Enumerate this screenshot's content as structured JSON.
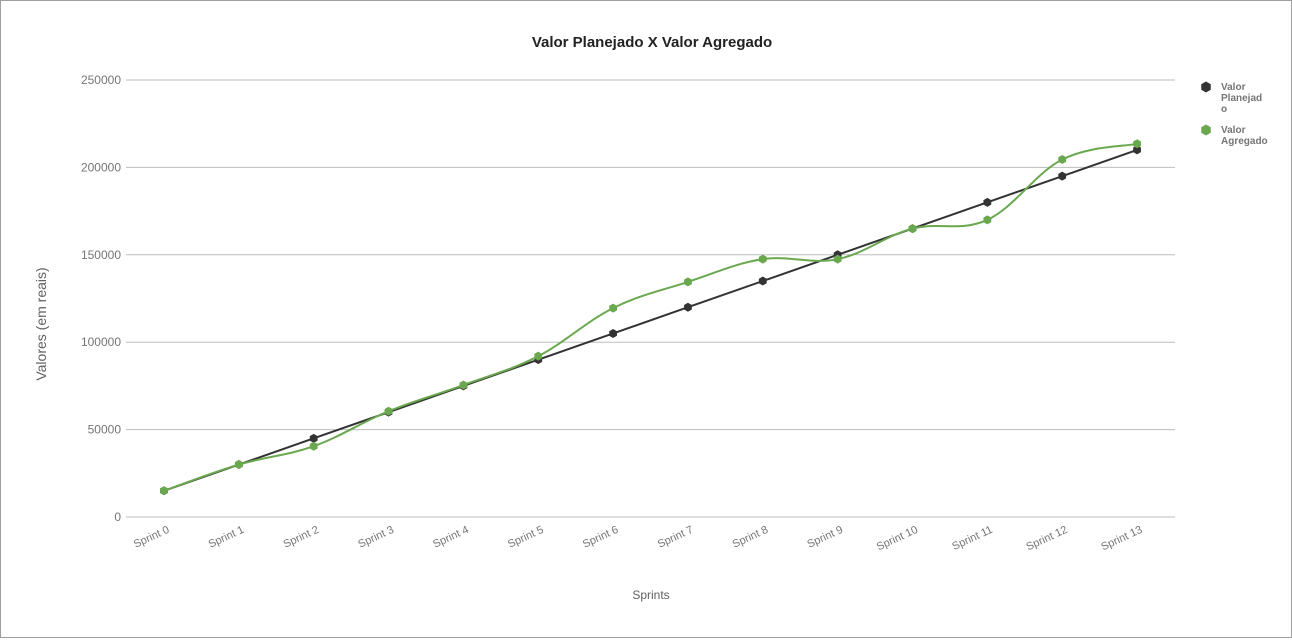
{
  "chart_data": {
    "type": "line",
    "title": "Valor Planejado X Valor Agregado",
    "xlabel": "Sprints",
    "ylabel": "Valores (em reais)",
    "ylim": [
      0,
      250000
    ],
    "yticks": [
      0,
      50000,
      100000,
      150000,
      200000,
      250000
    ],
    "grid": true,
    "legend_position": "right",
    "categories": [
      "Sprint 0",
      "Sprint 1",
      "Sprint 2",
      "Sprint 3",
      "Sprint 4",
      "Sprint 5",
      "Sprint 6",
      "Sprint 7",
      "Sprint 8",
      "Sprint 9",
      "Sprint 10",
      "Sprint 11",
      "Sprint 12",
      "Sprint 13"
    ],
    "series": [
      {
        "name": "Valor Planejado",
        "name_lines": [
          "Valor",
          "Planejad",
          "o"
        ],
        "color": "#333333",
        "smooth": false,
        "values": [
          15000,
          30000,
          45000,
          60000,
          75000,
          90000,
          105000,
          120000,
          135000,
          150000,
          165000,
          180000,
          195000,
          210000
        ]
      },
      {
        "name": "Valor Agregado",
        "name_lines": [
          "Valor",
          "Agregado"
        ],
        "color": "#6aa84f",
        "smooth": true,
        "values": [
          15000,
          30000,
          40500,
          60500,
          75500,
          92000,
          119500,
          134500,
          147500,
          147500,
          165000,
          170000,
          204500,
          213500
        ]
      }
    ]
  }
}
